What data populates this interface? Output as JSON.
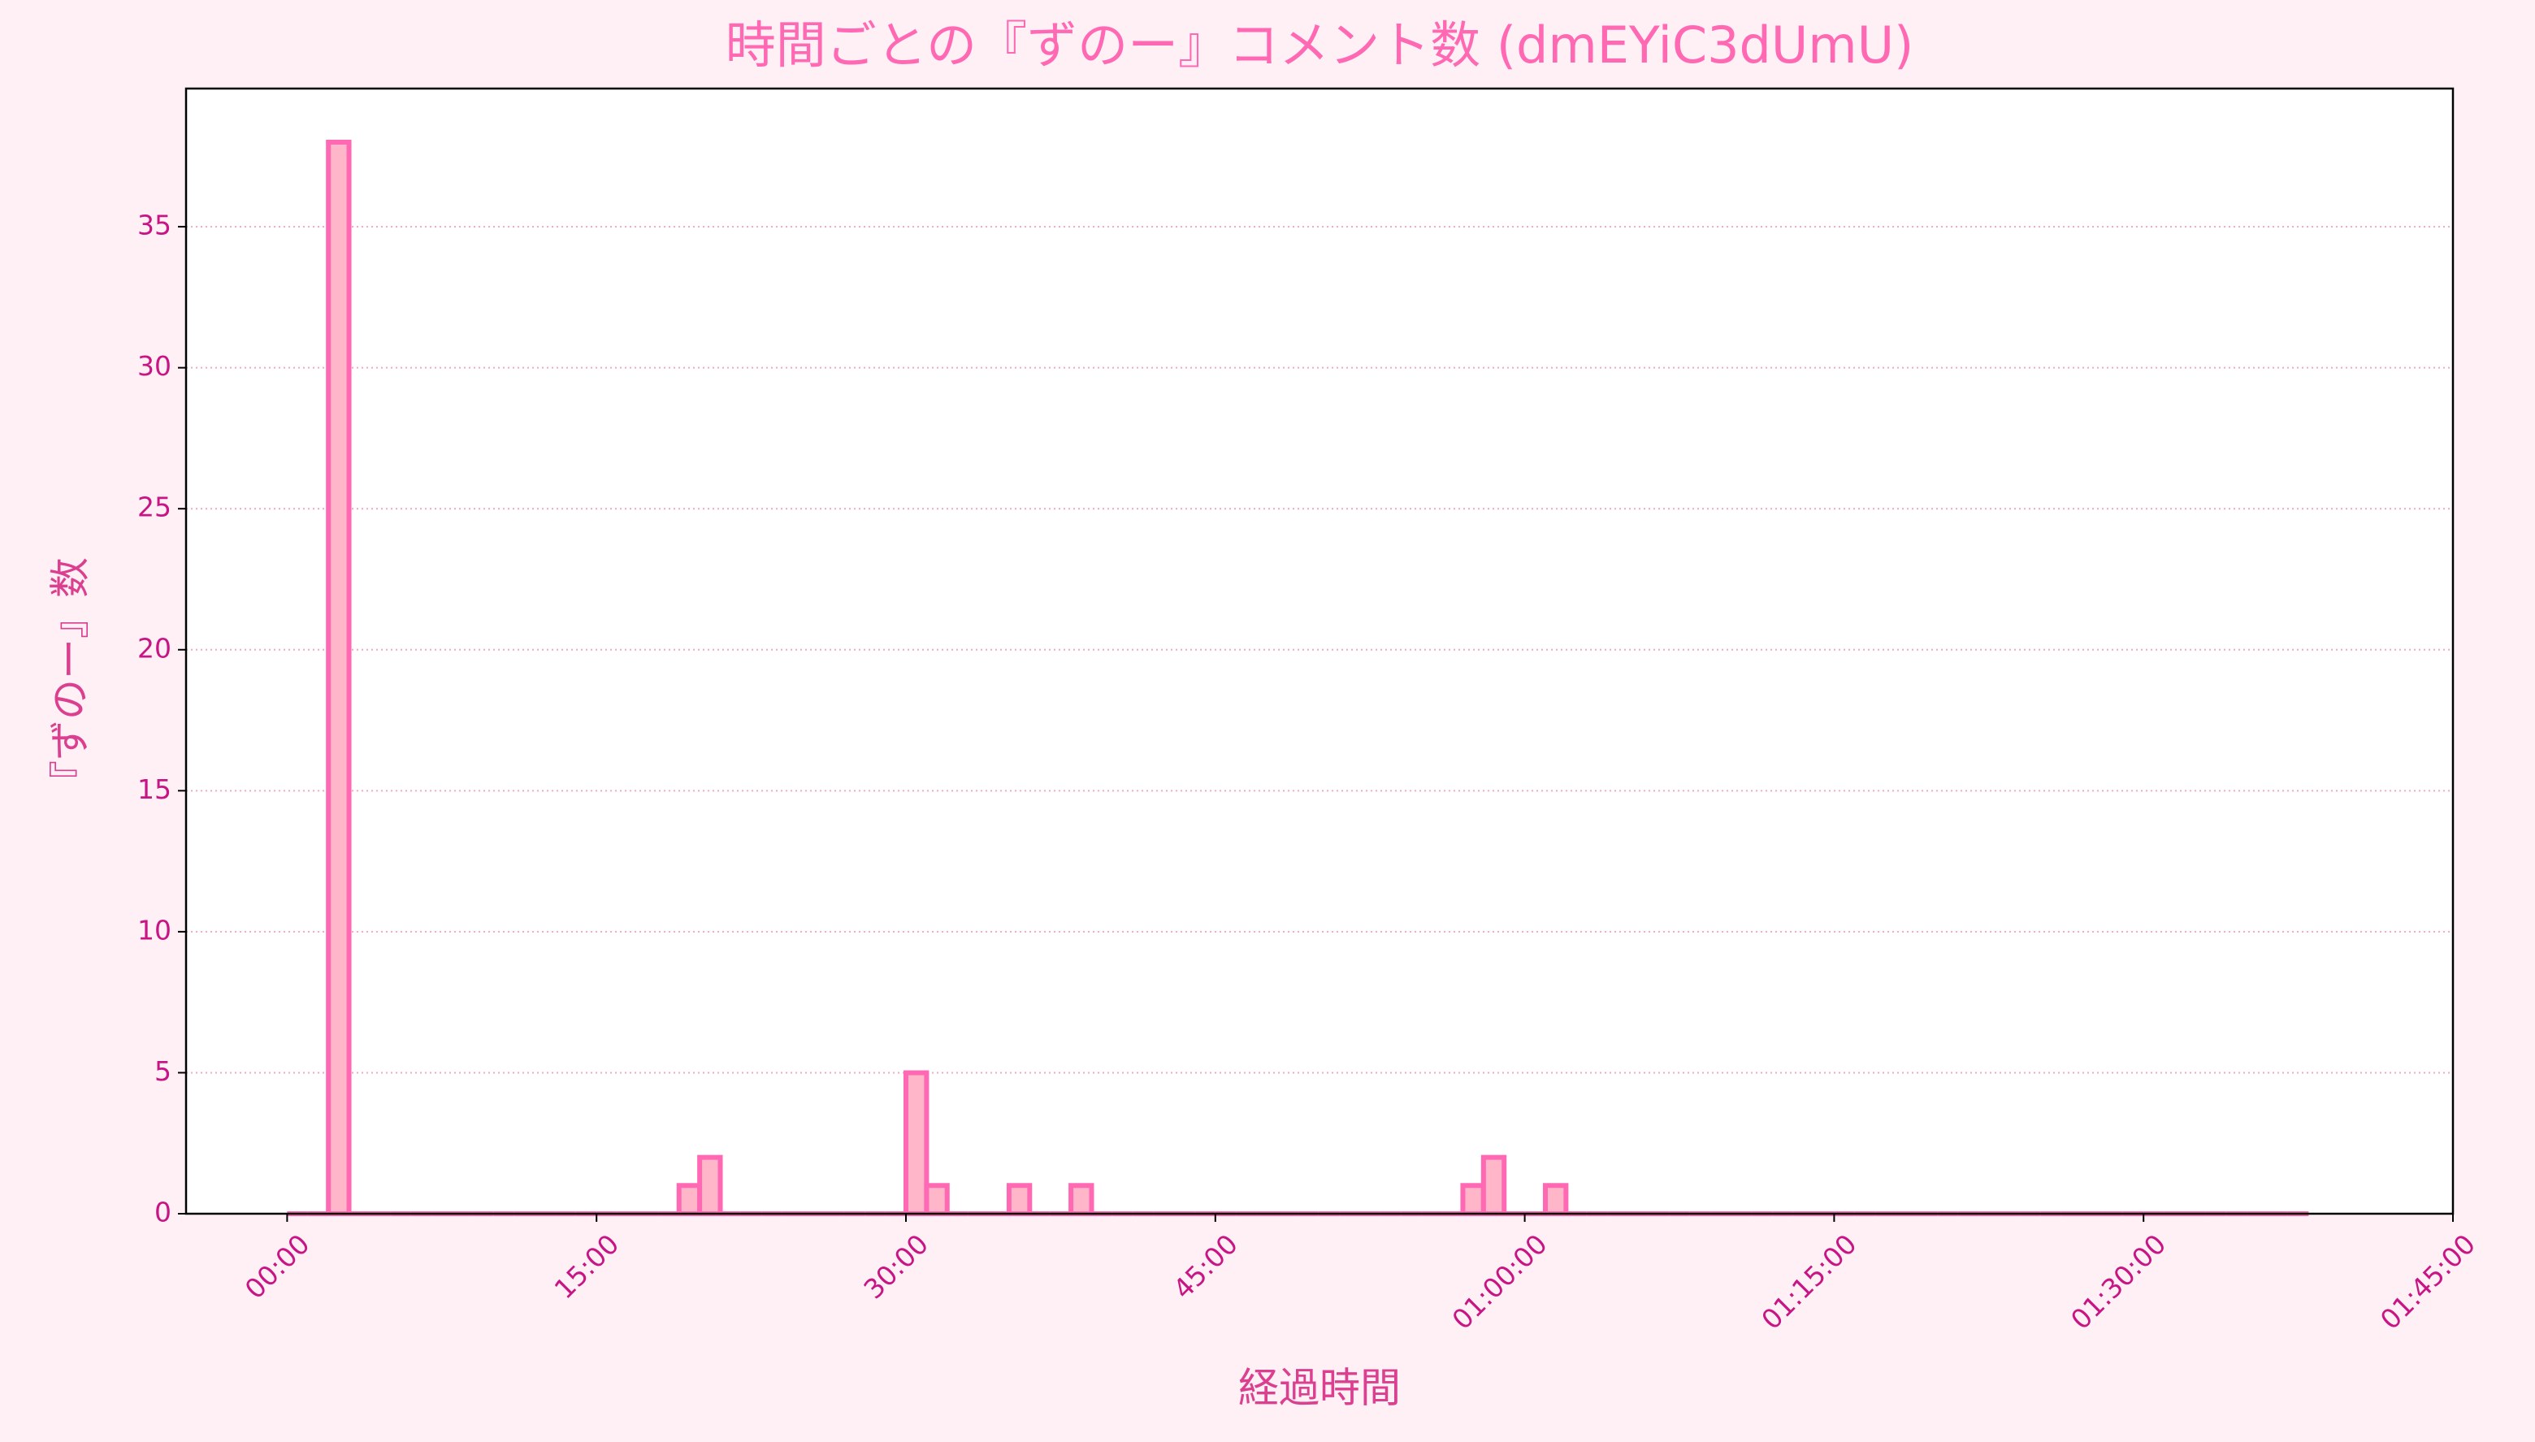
{
  "chart_data": {
    "type": "histogram",
    "title": "時間ごとの『ずのー』コメント数 (dmEYiC3dUmU)",
    "x_label": "経過時間",
    "y_label": "『ずのー』数",
    "bins": [
      0,
      60,
      120,
      180,
      240,
      300,
      360,
      420,
      480,
      540,
      600,
      660,
      720,
      780,
      840,
      900,
      960,
      1020,
      1080,
      1140,
      1200,
      1260,
      1320,
      1380,
      1440,
      1500,
      1560,
      1620,
      1680,
      1740,
      1800,
      1860,
      1920,
      1980,
      2040,
      2100,
      2160,
      2220,
      2280,
      2340,
      2400,
      2460,
      2520,
      2580,
      2640,
      2700,
      2760,
      2820,
      2880,
      2940,
      3000,
      3060,
      3120,
      3180,
      3240,
      3300,
      3360,
      3420,
      3480,
      3540,
      3600,
      3660,
      3720,
      3780,
      3840,
      3900,
      3960,
      4020,
      4080,
      4140,
      4200,
      4260,
      4320,
      4380,
      4440,
      4500,
      4560,
      4620,
      4680,
      4740,
      4800,
      4860,
      4920,
      4980,
      5040,
      5100,
      5160,
      5220,
      5280,
      5340,
      5400,
      5460,
      5520,
      5580,
      5640,
      5700,
      5760,
      5820,
      5880
    ],
    "values": [
      0,
      0,
      38,
      0,
      0,
      0,
      0,
      0,
      0,
      0,
      0,
      0,
      0,
      0,
      0,
      0,
      0,
      0,
      0,
      1,
      2,
      0,
      0,
      0,
      0,
      0,
      0,
      0,
      0,
      0,
      5,
      1,
      0,
      0,
      0,
      1,
      0,
      0,
      1,
      0,
      0,
      0,
      0,
      0,
      0,
      0,
      0,
      0,
      0,
      0,
      0,
      0,
      0,
      0,
      0,
      0,
      0,
      1,
      2,
      0,
      0,
      1,
      0,
      0,
      0,
      0,
      0,
      0,
      0,
      0,
      0,
      0,
      0,
      0,
      0,
      0,
      0,
      0,
      0,
      0,
      0,
      0,
      0,
      0,
      0,
      0,
      0,
      0,
      0,
      0,
      0,
      0,
      0,
      0,
      0,
      0,
      0,
      0
    ],
    "color": "#ffb6c8",
    "edge_color": "#ff69b4",
    "xlim": [
      -294,
      6300
    ],
    "xticks": [
      {
        "value": 0,
        "label": "00:00"
      },
      {
        "value": 900,
        "label": "15:00"
      },
      {
        "value": 1800,
        "label": "30:00"
      },
      {
        "value": 2700,
        "label": "45:00"
      },
      {
        "value": 3600,
        "label": "01:00:00"
      },
      {
        "value": 4500,
        "label": "01:15:00"
      },
      {
        "value": 5400,
        "label": "01:30:00"
      },
      {
        "value": 6300,
        "label": "01:45:00"
      }
    ],
    "ylim": [
      0,
      39.9
    ],
    "yticks": [
      0,
      5,
      10,
      15,
      20,
      25,
      30,
      35
    ],
    "grid": true
  }
}
